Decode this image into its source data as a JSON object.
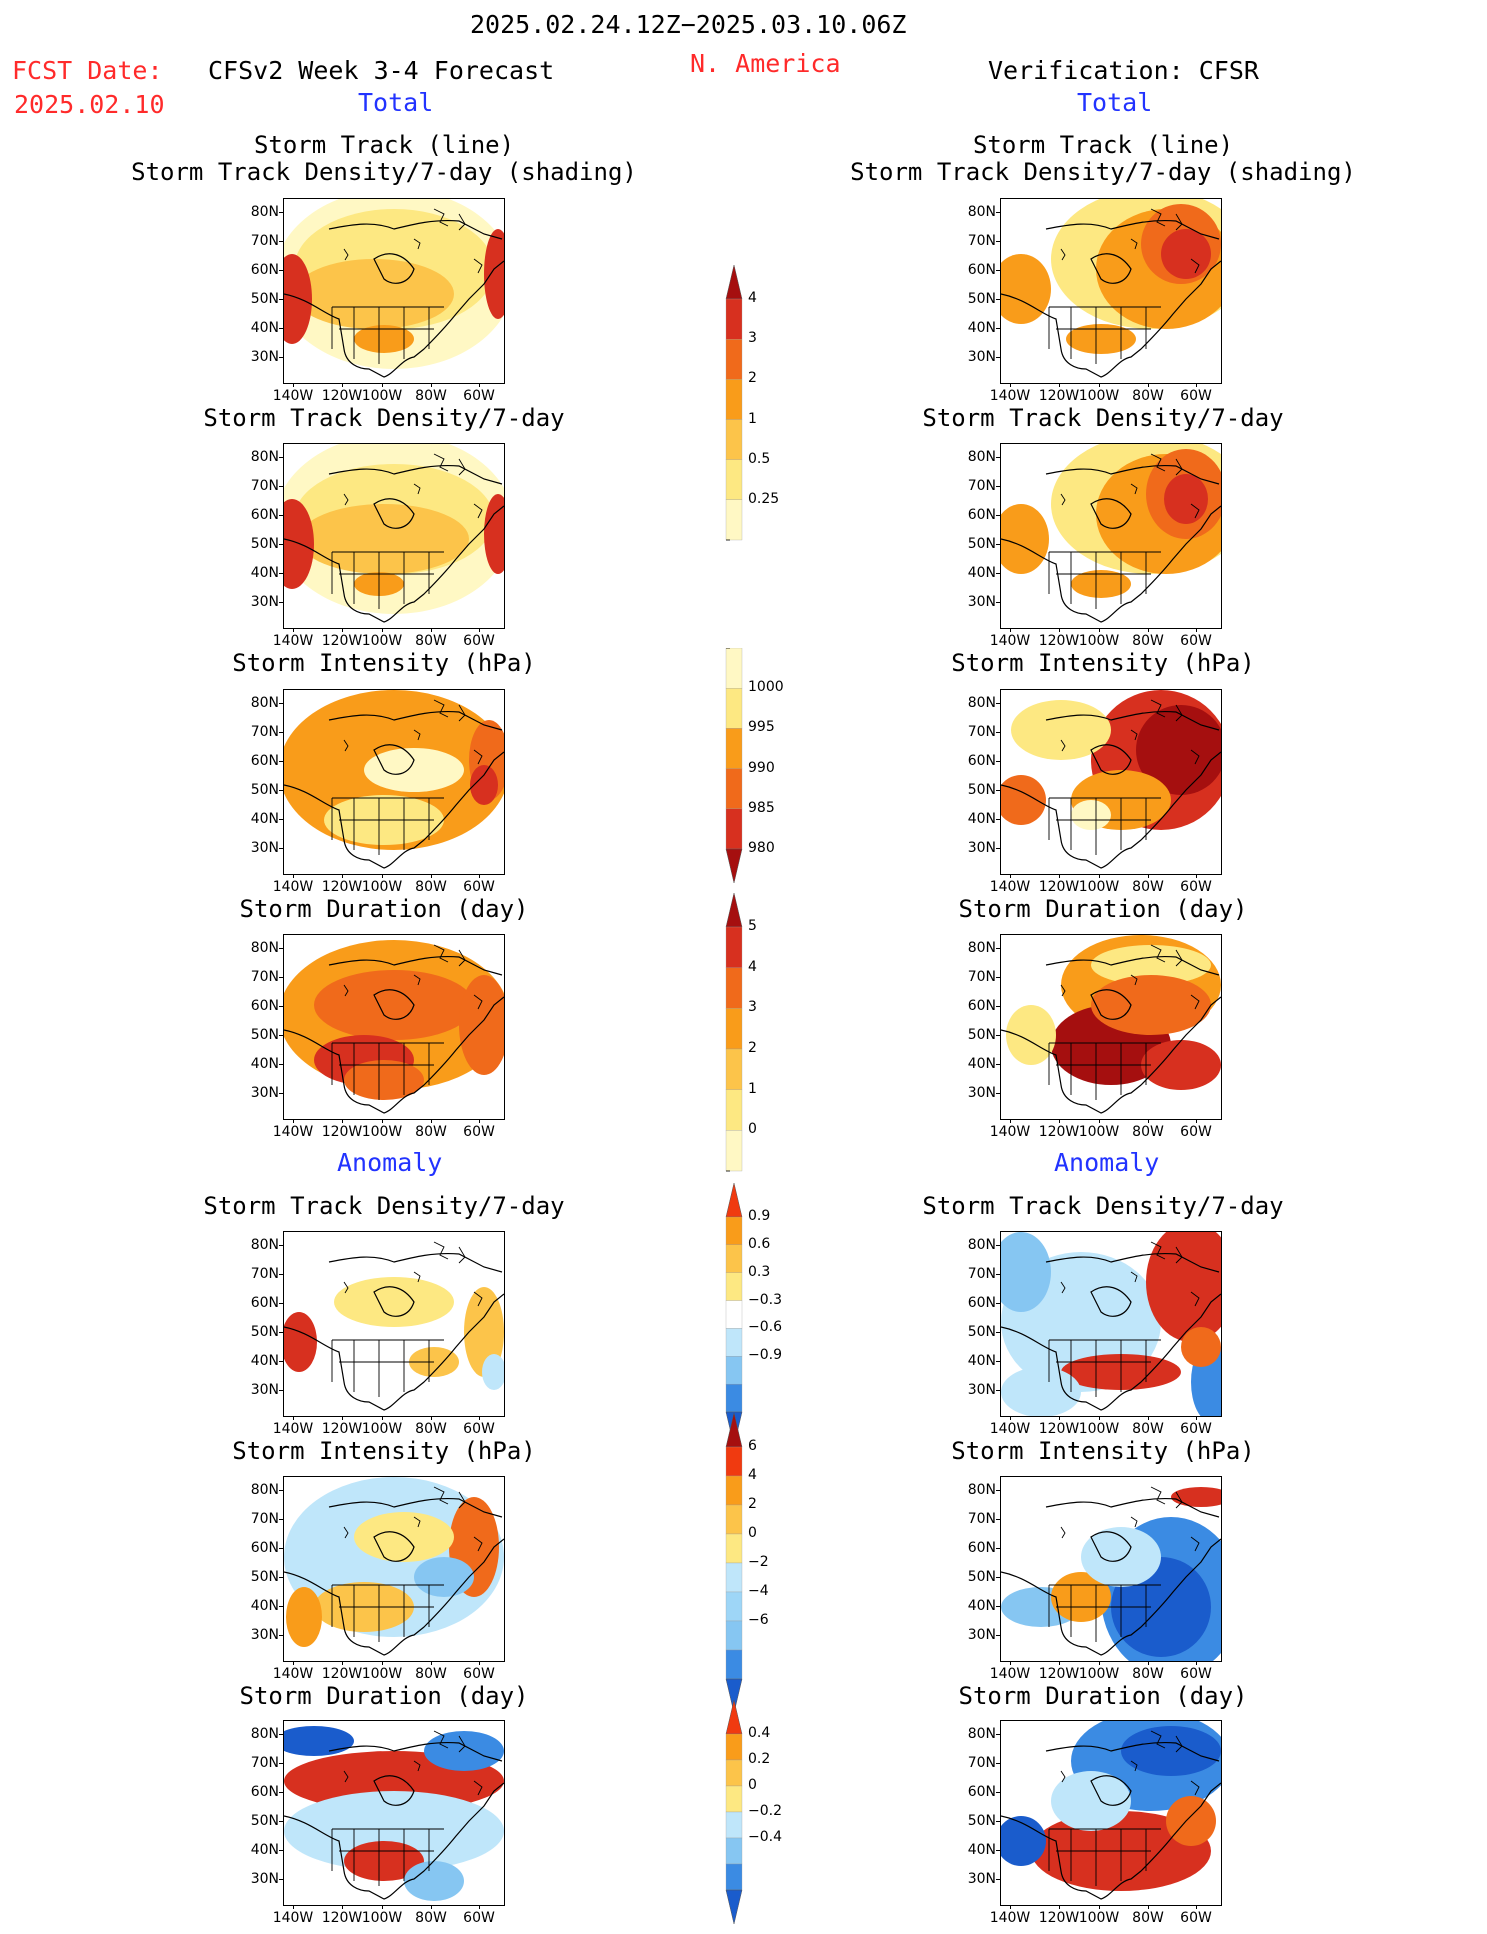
{
  "header": {
    "date_range": "2025.02.24.12Z−2025.03.10.06Z",
    "fcst_label": "FCST Date:",
    "fcst_date": "2025.02.10",
    "forecast_title": "CFSv2 Week 3-4 Forecast",
    "region": "N. America",
    "verification": "Verification: CFSR"
  },
  "sections": {
    "total": "Total",
    "anomaly": "Anomaly"
  },
  "panel_titles": {
    "track": [
      "Storm Track (line)",
      "Storm Track Density/7-day (shading)"
    ],
    "density": "Storm Track Density/7-day",
    "intensity": "Storm Intensity (hPa)",
    "duration": "Storm Duration (day)"
  },
  "map_axes": {
    "lat_labels": [
      "80N",
      "70N",
      "60N",
      "50N",
      "40N",
      "30N"
    ],
    "lon_labels": [
      "140W",
      "120W",
      "100W",
      "80W",
      "60W"
    ]
  },
  "colorbars": [
    {
      "id": "total_density",
      "labels": [
        "4",
        "3",
        "2",
        "1",
        "0.5",
        "0.25"
      ],
      "colors": [
        "#a50f0f",
        "#d7301f",
        "#f06a1b",
        "#f99c1a",
        "#fcc44a",
        "#fde882",
        "#fff8c4"
      ]
    },
    {
      "id": "total_intensity",
      "labels": [
        "1000",
        "995",
        "990",
        "985",
        "980"
      ],
      "colors": [
        "#fff8c4",
        "#fde882",
        "#f99c1a",
        "#f06a1b",
        "#d7301f",
        "#a50f0f"
      ]
    },
    {
      "id": "total_duration",
      "labels": [
        "5",
        "4",
        "3",
        "2",
        "1",
        "0"
      ],
      "colors": [
        "#a50f0f",
        "#d7301f",
        "#f06a1b",
        "#f99c1a",
        "#fcc44a",
        "#fde882",
        "#fff8c4"
      ]
    },
    {
      "id": "anom_density",
      "labels": [
        "0.9",
        "0.6",
        "0.3",
        "−0.3",
        "−0.6",
        "−0.9"
      ],
      "colors": [
        "#f03a10",
        "#f99c1a",
        "#fcc44a",
        "#fde882",
        "#ffffff",
        "#bfe6fa",
        "#86c6f2",
        "#3b8be3",
        "#1a5ccc"
      ]
    },
    {
      "id": "anom_intensity",
      "labels": [
        "6",
        "4",
        "2",
        "0",
        "−2",
        "−4",
        "−6"
      ],
      "colors": [
        "#a50f0f",
        "#f03a10",
        "#f99c1a",
        "#fcc44a",
        "#fde882",
        "#bfe6fa",
        "#9ed6f7",
        "#86c6f2",
        "#3b8be3",
        "#1a5ccc"
      ]
    },
    {
      "id": "anom_duration",
      "labels": [
        "0.4",
        "0.2",
        "0",
        "−0.2",
        "−0.4"
      ],
      "colors": [
        "#f03a10",
        "#f99c1a",
        "#fcc44a",
        "#fde882",
        "#bfe6fa",
        "#86c6f2",
        "#3b8be3",
        "#1a5ccc"
      ]
    }
  ]
}
